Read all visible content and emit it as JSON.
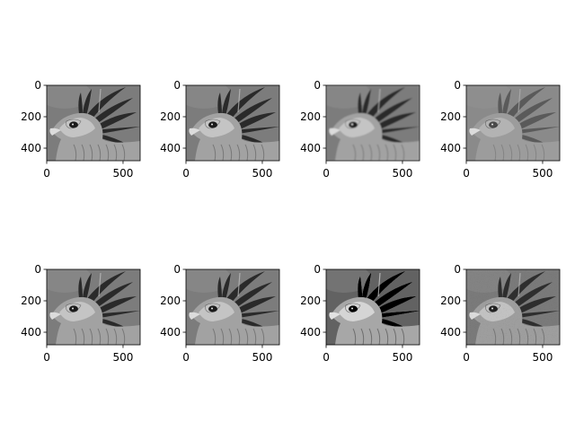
{
  "figure": {
    "background": "#ffffff",
    "axis_color": "#000000",
    "grid": false,
    "layout": "2 rows x 4 columns of image panels",
    "panels": [
      {
        "row": 1,
        "col": 1,
        "content": "grayscale photo of a secretary bird head",
        "tone": "original",
        "x_ticks": [
          "0",
          "500"
        ],
        "y_ticks": [
          "0",
          "200",
          "400"
        ],
        "x_range": [
          0,
          612
        ],
        "y_range": [
          480,
          0
        ]
      },
      {
        "row": 1,
        "col": 2,
        "content": "grayscale photo of a secretary bird head",
        "tone": "original",
        "x_ticks": [
          "0",
          "500"
        ],
        "y_ticks": [
          "0",
          "200",
          "400"
        ],
        "x_range": [
          0,
          612
        ],
        "y_range": [
          480,
          0
        ]
      },
      {
        "row": 1,
        "col": 3,
        "content": "grayscale photo of a secretary bird head",
        "tone": "slightly smoothed",
        "x_ticks": [
          "0",
          "500"
        ],
        "y_ticks": [
          "0",
          "200",
          "400"
        ],
        "x_range": [
          0,
          612
        ],
        "y_range": [
          480,
          0
        ]
      },
      {
        "row": 1,
        "col": 4,
        "content": "grayscale photo of a secretary bird head",
        "tone": "low contrast",
        "x_ticks": [
          "0",
          "500"
        ],
        "y_ticks": [
          "0",
          "200",
          "400"
        ],
        "x_range": [
          0,
          612
        ],
        "y_range": [
          480,
          0
        ]
      },
      {
        "row": 2,
        "col": 1,
        "content": "grayscale photo of a secretary bird head",
        "tone": "original",
        "x_ticks": [
          "0",
          "500"
        ],
        "y_ticks": [
          "0",
          "200",
          "400"
        ],
        "x_range": [
          0,
          612
        ],
        "y_range": [
          480,
          0
        ]
      },
      {
        "row": 2,
        "col": 2,
        "content": "grayscale photo of a secretary bird head",
        "tone": "original",
        "x_ticks": [
          "0",
          "500"
        ],
        "y_ticks": [
          "0",
          "200",
          "400"
        ],
        "x_range": [
          0,
          612
        ],
        "y_range": [
          480,
          0
        ]
      },
      {
        "row": 2,
        "col": 3,
        "content": "grayscale photo of a secretary bird head",
        "tone": "sharpened",
        "x_ticks": [
          "0",
          "500"
        ],
        "y_ticks": [
          "0",
          "200",
          "400"
        ],
        "x_range": [
          0,
          612
        ],
        "y_range": [
          480,
          0
        ]
      },
      {
        "row": 2,
        "col": 4,
        "content": "grayscale photo of a secretary bird head",
        "tone": "noisy",
        "x_ticks": [
          "0",
          "500"
        ],
        "y_ticks": [
          "0",
          "200",
          "400"
        ],
        "x_range": [
          0,
          612
        ],
        "y_range": [
          480,
          0
        ]
      }
    ]
  }
}
